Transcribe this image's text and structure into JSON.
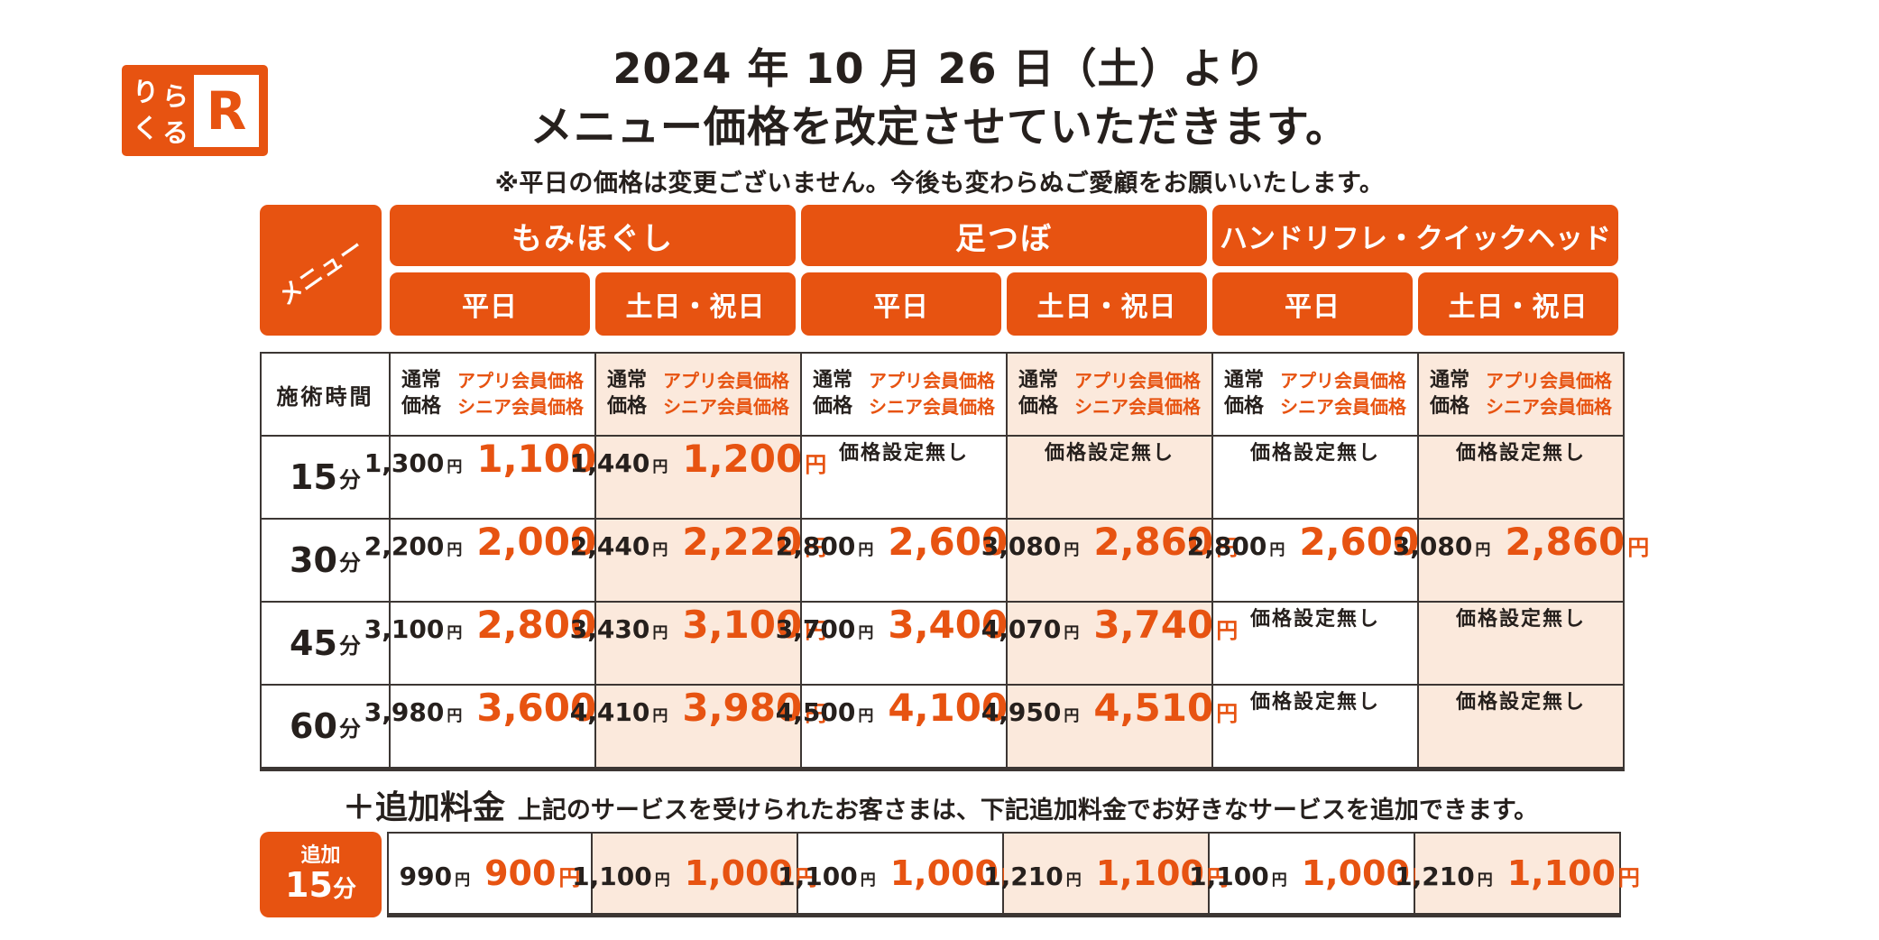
{
  "colors": {
    "accent": "#e75311",
    "weekend_bg": "#fbe9dc",
    "border": "#3c3633"
  },
  "brand": {
    "kana": [
      "り",
      "ら",
      "く",
      "る"
    ],
    "r_mark": "R"
  },
  "title": {
    "line1": "2024 年 10 月 26 日（土）より",
    "line2": "メニュー価格を改定させていただきます。",
    "note": "※平日の価格は変更ございません。今後も変わらぬご愛顧をお願いいたします。"
  },
  "menu_header": {
    "label": "メニュー",
    "services": [
      "もみほぐし",
      "足つぼ",
      "ハンドリフレ・クイックヘッド"
    ],
    "days": [
      "平日",
      "土日・祝日"
    ]
  },
  "pricing_table": {
    "time_header": "施術時間",
    "col_header": {
      "normal_lines": [
        "通常",
        "価格"
      ],
      "member_lines": [
        "アプリ会員価格",
        "シニア会員価格"
      ]
    },
    "yen": "円",
    "minute_unit": "分",
    "no_price": "価格設定無し",
    "weekend_columns": [
      false,
      true,
      false,
      true,
      false,
      true
    ],
    "rows": [
      {
        "minutes": "15",
        "cells": [
          {
            "normal": "1,300",
            "member": "1,100"
          },
          {
            "normal": "1,440",
            "member": "1,200"
          },
          null,
          null,
          null,
          null
        ]
      },
      {
        "minutes": "30",
        "cells": [
          {
            "normal": "2,200",
            "member": "2,000"
          },
          {
            "normal": "2,440",
            "member": "2,220"
          },
          {
            "normal": "2,800",
            "member": "2,600"
          },
          {
            "normal": "3,080",
            "member": "2,860"
          },
          {
            "normal": "2,800",
            "member": "2,600"
          },
          {
            "normal": "3,080",
            "member": "2,860"
          }
        ]
      },
      {
        "minutes": "45",
        "cells": [
          {
            "normal": "3,100",
            "member": "2,800"
          },
          {
            "normal": "3,430",
            "member": "3,100"
          },
          {
            "normal": "3,700",
            "member": "3,400"
          },
          {
            "normal": "4,070",
            "member": "3,740"
          },
          null,
          null
        ]
      },
      {
        "minutes": "60",
        "cells": [
          {
            "normal": "3,980",
            "member": "3,600"
          },
          {
            "normal": "4,410",
            "member": "3,980"
          },
          {
            "normal": "4,500",
            "member": "4,100"
          },
          {
            "normal": "4,950",
            "member": "4,510"
          },
          null,
          null
        ]
      }
    ]
  },
  "addon": {
    "heading": "＋追加料金",
    "description": "上記のサービスを受けられたお客さまは、下記追加料金でお好きなサービスを追加できます。",
    "label_small": "追加",
    "minutes": "15",
    "cells": [
      {
        "normal": "990",
        "member": "900"
      },
      {
        "normal": "1,100",
        "member": "1,000"
      },
      {
        "normal": "1,100",
        "member": "1,000"
      },
      {
        "normal": "1,210",
        "member": "1,100"
      },
      {
        "normal": "1,100",
        "member": "1,000"
      },
      {
        "normal": "1,210",
        "member": "1,100"
      }
    ]
  }
}
